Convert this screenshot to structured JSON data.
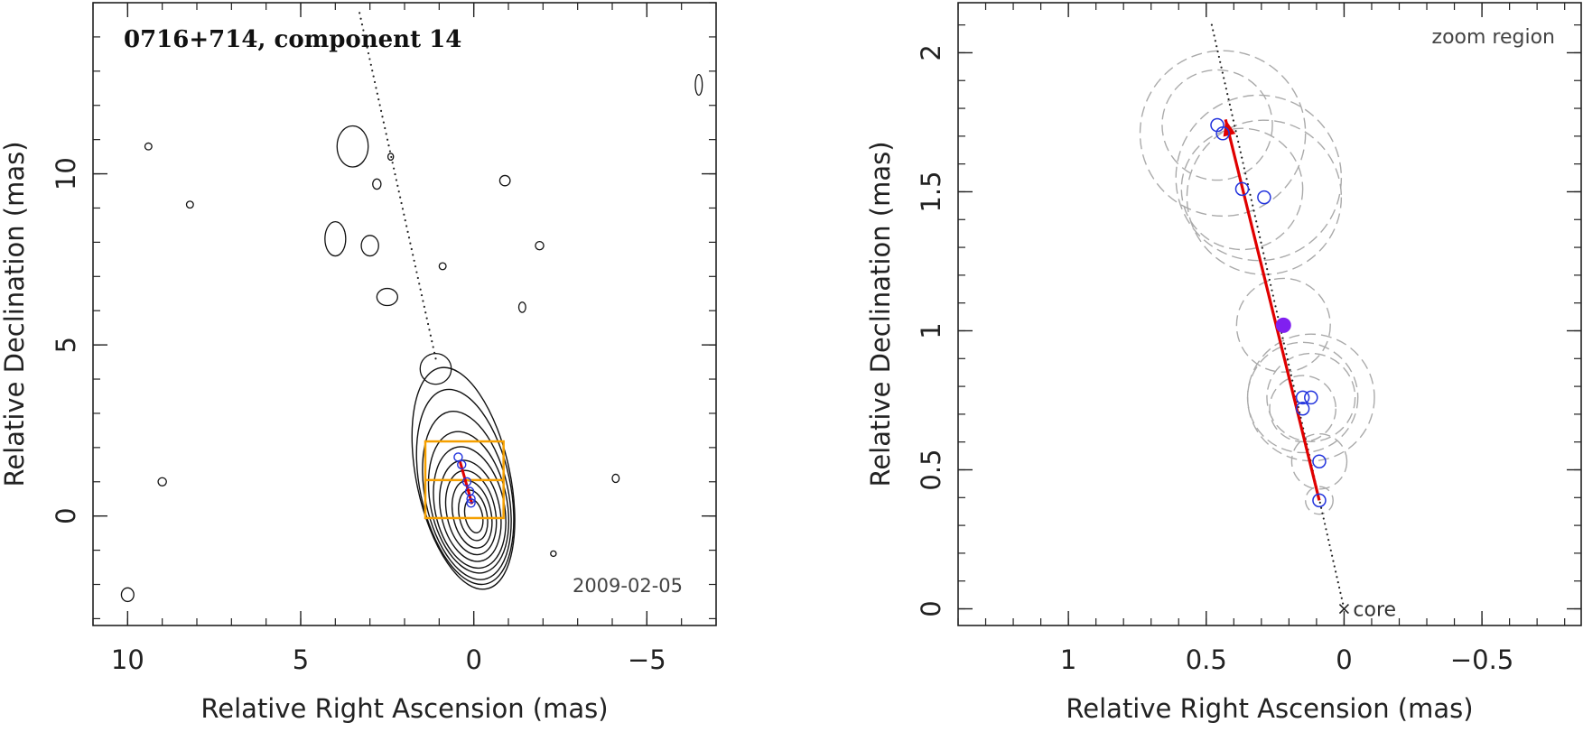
{
  "chart_data": [
    {
      "type": "contour-map",
      "title": "0716+714, component 14",
      "annotation": "2009-02-05",
      "xlabel": "Relative Right Ascension (mas)",
      "ylabel": "Relative Declination (mas)",
      "xlim": [
        11,
        -7
      ],
      "ylim": [
        -3.2,
        15
      ],
      "xticks": [
        10,
        5,
        0,
        -5
      ],
      "xtick_labels": [
        "10",
        "5",
        "0",
        "−5"
      ],
      "yticks": [
        0,
        5,
        10
      ],
      "ytick_labels": [
        "0",
        "5",
        "10"
      ],
      "contour_color": "#000000",
      "trajectory_color": "#e00000",
      "zoom_box_color": "#f5a000",
      "component_color": "#2233dd",
      "zoom_box": {
        "x": [
          0.0,
          0.5
        ],
        "y": [
          0.0,
          2.2
        ]
      },
      "trajectory": {
        "from": [
          0.05,
          0.35
        ],
        "to": [
          0.4,
          1.6
        ]
      },
      "components": [
        [
          0.45,
          1.72
        ],
        [
          0.35,
          1.5
        ],
        [
          0.2,
          1.0
        ],
        [
          0.12,
          0.72
        ],
        [
          0.08,
          0.5
        ],
        [
          0.08,
          0.38
        ]
      ],
      "line_dots": {
        "from": [
          3.3,
          14.7
        ],
        "to": [
          1.1,
          4.6
        ]
      }
    },
    {
      "type": "scatter",
      "title": "zoom region",
      "xlabel": "Relative Right Ascension (mas)",
      "ylabel": "Relative Declination (mas)",
      "xlim": [
        1.4,
        -0.86
      ],
      "ylim": [
        -0.06,
        2.18
      ],
      "xticks": [
        1,
        0.5,
        0,
        -0.5
      ],
      "xtick_labels": [
        "1",
        "0.5",
        "0",
        "−0.5"
      ],
      "yticks": [
        0,
        0.5,
        1,
        1.5,
        2
      ],
      "ytick_labels": [
        "0",
        "0.5",
        "1",
        "1.5",
        "2"
      ],
      "core_label": "core",
      "core": [
        0,
        0
      ],
      "ridge_line": {
        "from": [
          0.48,
          2.1
        ],
        "to": [
          0,
          0
        ]
      },
      "trajectory": {
        "from": [
          0.09,
          0.39
        ],
        "to": [
          0.43,
          1.76
        ]
      },
      "trajectory_color": "#e00000",
      "fill_color": "#8020f0",
      "circle_color": "#2233dd",
      "uncertainty_color": "#aaaaaa",
      "filled_point": [
        0.22,
        1.02
      ],
      "points": [
        {
          "x": 0.46,
          "y": 1.74,
          "r": 0.2
        },
        {
          "x": 0.44,
          "y": 1.71,
          "r": 0.3
        },
        {
          "x": 0.37,
          "y": 1.51,
          "r": 0.22
        },
        {
          "x": 0.29,
          "y": 1.48,
          "r": 0.28
        },
        {
          "x": 0.15,
          "y": 0.76,
          "r": 0.2
        },
        {
          "x": 0.12,
          "y": 0.76,
          "r": 0.16
        },
        {
          "x": 0.15,
          "y": 0.72,
          "r": 0.12
        },
        {
          "x": 0.09,
          "y": 0.53,
          "r": 0.1
        },
        {
          "x": 0.09,
          "y": 0.39,
          "r": 0.05
        }
      ],
      "extra_circles": [
        {
          "x": 0.22,
          "y": 1.02,
          "r": 0.17
        },
        {
          "x": 0.31,
          "y": 1.55,
          "r": 0.3
        },
        {
          "x": 0.12,
          "y": 0.76,
          "r": 0.23
        }
      ]
    }
  ]
}
